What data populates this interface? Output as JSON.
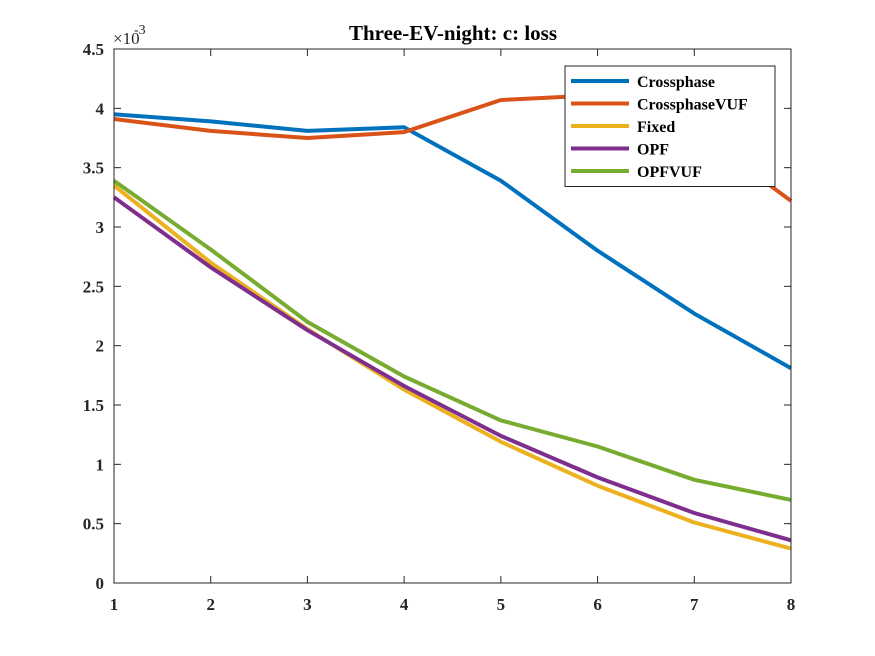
{
  "chart_data": {
    "type": "line",
    "title": "Three-EV-night: c: loss",
    "xlabel": "",
    "ylabel": "",
    "xlim": [
      1,
      8
    ],
    "ylim": [
      0,
      4.5
    ],
    "x": [
      1,
      2,
      3,
      4,
      5,
      6,
      7,
      8
    ],
    "xticks": [
      "1",
      "2",
      "3",
      "4",
      "5",
      "6",
      "7",
      "8"
    ],
    "yticks": [
      "0",
      "0.5",
      "1",
      "1.5",
      "2",
      "2.5",
      "3",
      "3.5",
      "4",
      "4.5"
    ],
    "y_exponent_label": "×10",
    "y_exponent": "-3",
    "grid": false,
    "legend_position": "top-right",
    "series": [
      {
        "name": "Crossphase",
        "color": "#0072BD",
        "values": [
          3.95,
          3.89,
          3.81,
          3.84,
          3.39,
          2.8,
          2.27,
          1.81
        ]
      },
      {
        "name": "CrossphaseVUF",
        "color": "#D95319",
        "values": [
          3.91,
          3.81,
          3.75,
          3.8,
          4.07,
          4.11,
          3.82,
          3.22
        ]
      },
      {
        "name": "Fixed",
        "color": "#EDB120",
        "values": [
          3.35,
          2.7,
          2.14,
          1.63,
          1.19,
          0.82,
          0.51,
          0.29
        ]
      },
      {
        "name": "OPF",
        "color": "#7E2F8E",
        "values": [
          3.25,
          2.66,
          2.13,
          1.66,
          1.24,
          0.89,
          0.59,
          0.36
        ]
      },
      {
        "name": "OPFVUF",
        "color": "#77AC30",
        "values": [
          3.39,
          2.81,
          2.2,
          1.74,
          1.37,
          1.15,
          0.87,
          0.7
        ]
      }
    ]
  }
}
